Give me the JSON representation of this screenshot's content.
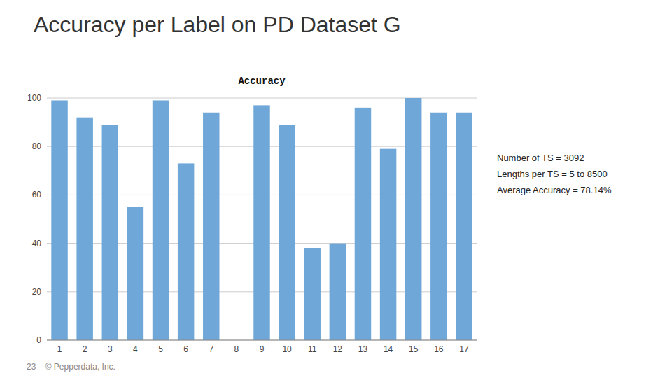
{
  "chart_data": {
    "type": "bar",
    "title": "Accuracy per Label on PD Dataset G",
    "subtitle": "Accuracy",
    "categories": [
      "1",
      "2",
      "3",
      "4",
      "5",
      "6",
      "7",
      "8",
      "9",
      "10",
      "11",
      "12",
      "13",
      "14",
      "15",
      "16",
      "17"
    ],
    "values": [
      99,
      92,
      89,
      55,
      99,
      73,
      94,
      0,
      97,
      89,
      38,
      40,
      96,
      79,
      100,
      94,
      94
    ],
    "color": "#6fa8d8",
    "ylim": [
      0,
      100
    ],
    "yticks": [
      0,
      20,
      40,
      60,
      80,
      100
    ],
    "grid": true,
    "annotations": [
      "Number of TS = 3092\nLengths per TS = 5 to 8500\nAverage Accuracy = 78.14%",
      "23    © Pepperdata, Inc."
    ]
  }
}
